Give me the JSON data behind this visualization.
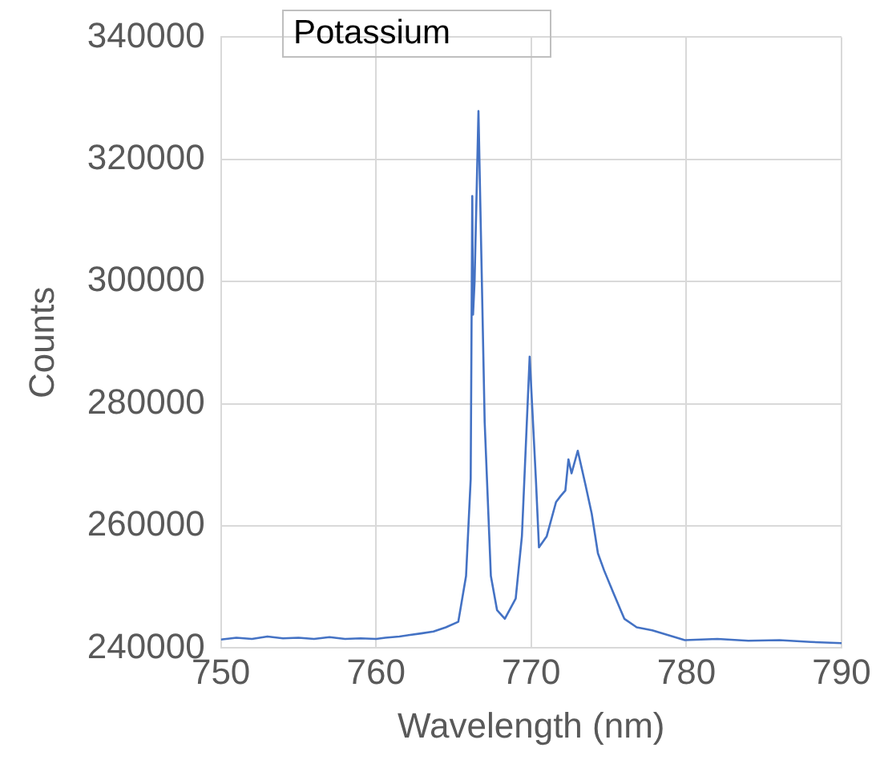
{
  "chart_data": {
    "type": "line",
    "title": "Potassium",
    "xlabel": "Wavelength (nm)",
    "ylabel": "Counts",
    "xlim": [
      750,
      790
    ],
    "xticks": [
      750,
      760,
      770,
      780,
      790
    ],
    "ylim": [
      240000,
      340000
    ],
    "yticks": [
      240000,
      260000,
      280000,
      300000,
      320000,
      340000
    ],
    "grid": true,
    "legend": false,
    "marker": "none",
    "line_style": "solid",
    "series": [
      {
        "color": "#4472c4",
        "x": [
          750,
          751,
          752,
          753,
          754,
          755,
          756,
          757,
          758,
          759,
          760,
          760.6,
          761.5,
          762.9,
          763.7,
          764.5,
          765.3,
          765.8,
          766.1,
          766.2,
          766.25,
          766.35,
          766.6,
          767.0,
          767.4,
          767.8,
          768.3,
          769.0,
          769.4,
          769.9,
          770.3,
          770.5,
          771.0,
          771.6,
          771.9,
          772.2,
          772.4,
          772.6,
          773.0,
          773.5,
          773.9,
          774.3,
          774.7,
          775.3,
          776.0,
          776.8,
          777.8,
          779.9,
          782,
          784,
          786,
          788,
          790
        ],
        "values": [
          241400,
          241700,
          241500,
          241900,
          241600,
          241700,
          241500,
          241800,
          241500,
          241600,
          241500,
          241700,
          241900,
          242400,
          242700,
          243400,
          244300,
          251800,
          267700,
          314000,
          294600,
          300000,
          327900,
          277000,
          251800,
          246200,
          244800,
          248100,
          258300,
          287700,
          267700,
          256500,
          258300,
          263900,
          264900,
          265800,
          270900,
          268600,
          272300,
          266700,
          262000,
          255500,
          252700,
          249000,
          244800,
          243400,
          242900,
          241300,
          241500,
          241200,
          241300,
          241000,
          240800
        ]
      }
    ]
  }
}
